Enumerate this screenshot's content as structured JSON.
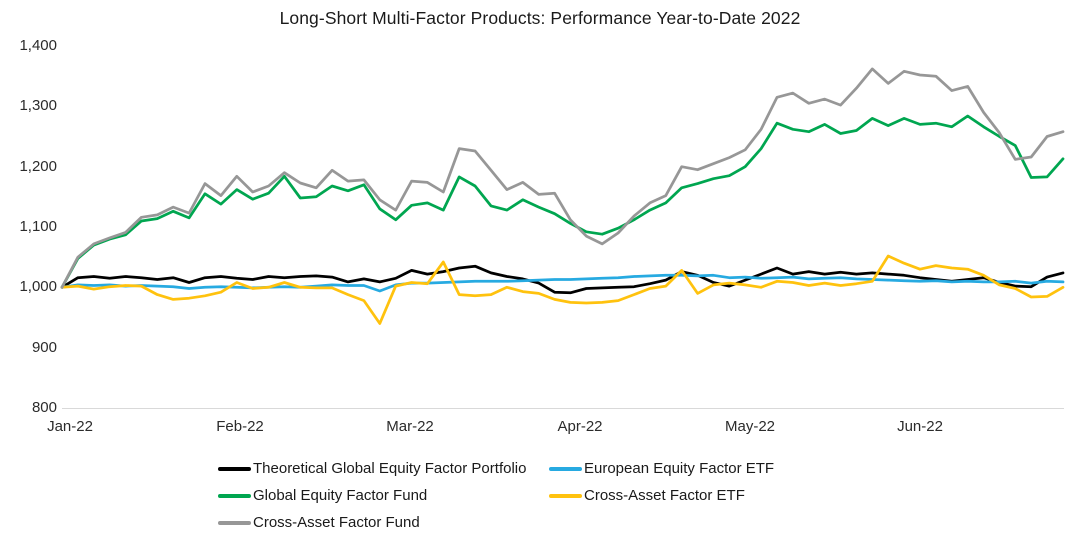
{
  "chart_data": {
    "type": "line",
    "title": "Long-Short Multi-Factor Products: Performance Year-to-Date 2022",
    "x_categories": [
      "Jan-22",
      "Feb-22",
      "Mar-22",
      "Apr-22",
      "May-22",
      "Jun-22"
    ],
    "y_axis": {
      "min": 800,
      "max": 1400,
      "step": 100,
      "tick_labels": [
        "800",
        "900",
        "1,000",
        "1,100",
        "1,200",
        "1,300",
        "1,400"
      ]
    },
    "grid": false,
    "legend_position": "bottom",
    "series": [
      {
        "name": "Theoretical Global Equity Factor Portfolio",
        "color": "#000000",
        "values": [
          1000,
          1016,
          1018,
          1015,
          1018,
          1016,
          1013,
          1016,
          1008,
          1016,
          1018,
          1015,
          1013,
          1018,
          1016,
          1018,
          1019,
          1017,
          1009,
          1014,
          1009,
          1015,
          1028,
          1022,
          1026,
          1032,
          1035,
          1024,
          1018,
          1014,
          1007,
          992,
          991,
          998,
          999,
          1000,
          1001,
          1006,
          1012,
          1026,
          1020,
          1008,
          1002,
          1012,
          1022,
          1032,
          1022,
          1026,
          1022,
          1025,
          1022,
          1024,
          1022,
          1020,
          1016,
          1013,
          1010,
          1013,
          1016,
          1008,
          1002,
          1001,
          1017,
          1024
        ]
      },
      {
        "name": "European Equity Factor ETF",
        "color": "#27aae1",
        "values": [
          1000,
          1004,
          1003,
          1004,
          1002,
          1003,
          1002,
          1001,
          998,
          1000,
          1001,
          1000,
          999,
          1000,
          1001,
          1000,
          1002,
          1004,
          1003,
          1003,
          994,
          1004,
          1007,
          1007,
          1008,
          1009,
          1010,
          1010,
          1010,
          1011,
          1012,
          1013,
          1013,
          1014,
          1015,
          1016,
          1018,
          1019,
          1020,
          1020,
          1019,
          1020,
          1016,
          1017,
          1015,
          1016,
          1017,
          1014,
          1015,
          1016,
          1014,
          1013,
          1012,
          1011,
          1010,
          1011,
          1009,
          1010,
          1009,
          1009,
          1010,
          1007,
          1010,
          1009
        ]
      },
      {
        "name": "Global Equity Factor Fund",
        "color": "#00a650",
        "values": [
          1000,
          1048,
          1070,
          1080,
          1087,
          1110,
          1114,
          1126,
          1115,
          1155,
          1138,
          1162,
          1146,
          1156,
          1184,
          1148,
          1150,
          1168,
          1160,
          1170,
          1130,
          1112,
          1136,
          1140,
          1128,
          1183,
          1168,
          1135,
          1128,
          1145,
          1133,
          1122,
          1106,
          1092,
          1088,
          1098,
          1112,
          1128,
          1140,
          1165,
          1172,
          1180,
          1185,
          1200,
          1230,
          1272,
          1262,
          1258,
          1270,
          1255,
          1260,
          1280,
          1268,
          1280,
          1270,
          1272,
          1266,
          1284,
          1266,
          1250,
          1235,
          1182,
          1183,
          1213
        ]
      },
      {
        "name": "Cross-Asset Factor ETF",
        "color": "#ffc20e",
        "values": [
          1000,
          1002,
          997,
          1001,
          1003,
          1002,
          988,
          980,
          982,
          986,
          992,
          1008,
          998,
          1000,
          1008,
          1000,
          999,
          999,
          988,
          978,
          940,
          1002,
          1008,
          1006,
          1042,
          988,
          986,
          988,
          1000,
          993,
          990,
          980,
          975,
          974,
          975,
          978,
          988,
          998,
          1002,
          1028,
          990,
          1004,
          1007,
          1004,
          1000,
          1010,
          1008,
          1003,
          1007,
          1003,
          1006,
          1010,
          1052,
          1040,
          1030,
          1036,
          1032,
          1030,
          1020,
          1004,
          998,
          984,
          985,
          1000
        ]
      },
      {
        "name": "Cross-Asset Factor Fund",
        "color": "#979797",
        "values": [
          1000,
          1050,
          1072,
          1082,
          1091,
          1116,
          1120,
          1133,
          1123,
          1172,
          1152,
          1184,
          1158,
          1168,
          1190,
          1173,
          1165,
          1194,
          1176,
          1178,
          1145,
          1128,
          1176,
          1174,
          1158,
          1230,
          1226,
          1194,
          1162,
          1174,
          1154,
          1156,
          1112,
          1085,
          1072,
          1090,
          1118,
          1140,
          1152,
          1200,
          1195,
          1205,
          1215,
          1228,
          1262,
          1315,
          1322,
          1305,
          1312,
          1302,
          1330,
          1362,
          1338,
          1358,
          1352,
          1350,
          1326,
          1333,
          1290,
          1256,
          1212,
          1216,
          1250,
          1258
        ]
      }
    ]
  }
}
